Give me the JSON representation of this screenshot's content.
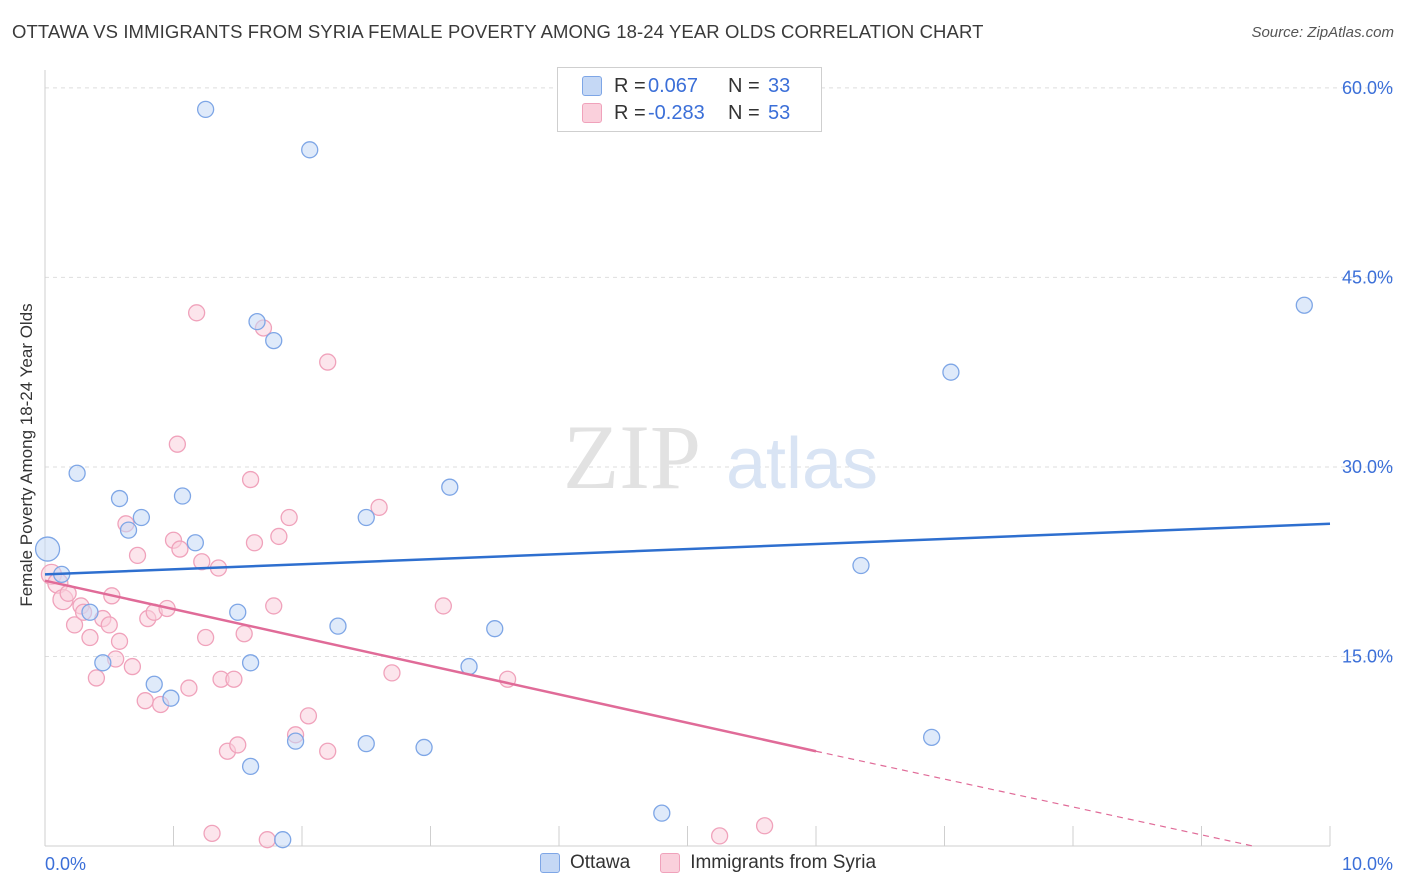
{
  "chart_data": {
    "type": "scatter",
    "title": "OTTAWA VS IMMIGRANTS FROM SYRIA FEMALE POVERTY AMONG 18-24 YEAR OLDS CORRELATION CHART",
    "source": "Source: ZipAtlas.com",
    "watermark": {
      "zip": "ZIP",
      "atlas": "atlas"
    },
    "xlabel": "",
    "ylabel": "Female Poverty Among 18-24 Year Olds",
    "xlim": [
      0,
      10
    ],
    "ylim": [
      0,
      63
    ],
    "x_tick_labels": [
      "0.0%",
      "10.0%"
    ],
    "y_tick_values": [
      15,
      30,
      45,
      60
    ],
    "y_tick_labels": [
      "15.0%",
      "30.0%",
      "45.0%",
      "60.0%"
    ],
    "legend": {
      "rows": [
        {
          "r_label": "R =",
          "r_value": "0.067",
          "n_label": "N =",
          "n_value": "33"
        },
        {
          "r_label": "R =",
          "r_value": "-0.283",
          "n_label": "N =",
          "n_value": "53"
        }
      ]
    },
    "series": [
      {
        "name": "Ottawa",
        "color": "#7ea6e6",
        "fill": "#c5d8f5",
        "line_color": "#2e6fcf",
        "trend": {
          "x0": 0,
          "y0": 21.5,
          "x1": 10,
          "y1": 25.5
        },
        "points": [
          [
            0.02,
            23.5,
            12
          ],
          [
            0.13,
            21.5,
            8
          ],
          [
            0.25,
            29.5,
            8
          ],
          [
            0.35,
            18.5,
            8
          ],
          [
            0.45,
            14.5,
            8
          ],
          [
            0.58,
            27.5,
            8
          ],
          [
            0.65,
            25.0,
            8
          ],
          [
            0.75,
            26.0,
            8
          ],
          [
            0.85,
            12.8,
            8
          ],
          [
            0.98,
            11.7,
            8
          ],
          [
            1.07,
            27.7,
            8
          ],
          [
            1.17,
            24.0,
            8
          ],
          [
            1.25,
            58.3,
            8
          ],
          [
            1.5,
            18.5,
            8
          ],
          [
            1.6,
            14.5,
            8
          ],
          [
            1.6,
            6.3,
            8
          ],
          [
            1.65,
            41.5,
            8
          ],
          [
            1.78,
            40.0,
            8
          ],
          [
            1.85,
            0.5,
            8
          ],
          [
            1.95,
            8.3,
            8
          ],
          [
            2.06,
            55.1,
            8
          ],
          [
            2.28,
            17.4,
            8
          ],
          [
            2.5,
            8.1,
            8
          ],
          [
            2.5,
            26.0,
            8
          ],
          [
            2.95,
            7.8,
            8
          ],
          [
            3.15,
            28.4,
            8
          ],
          [
            3.3,
            14.2,
            8
          ],
          [
            3.5,
            17.2,
            8
          ],
          [
            4.8,
            2.6,
            8
          ],
          [
            6.35,
            22.2,
            8
          ],
          [
            6.9,
            8.6,
            8
          ],
          [
            7.05,
            37.5,
            8
          ],
          [
            9.8,
            42.8,
            8
          ]
        ]
      },
      {
        "name": "Immigrants from Syria",
        "color": "#f0a2bb",
        "fill": "#fad0dc",
        "line_color": "#e06b98",
        "trend": {
          "x0": 0,
          "y0": 21.0,
          "x1": 6.0,
          "y1": 7.5
        },
        "trend_ext": {
          "x0": 6.0,
          "y0": 7.5,
          "x1": 9.4,
          "y1": 0
        },
        "points": [
          [
            0.05,
            21.5,
            10
          ],
          [
            0.1,
            20.8,
            10
          ],
          [
            0.14,
            19.5,
            10
          ],
          [
            0.18,
            20.0,
            8
          ],
          [
            0.23,
            17.5,
            8
          ],
          [
            0.28,
            19.0,
            8
          ],
          [
            0.3,
            18.5,
            8
          ],
          [
            0.35,
            16.5,
            8
          ],
          [
            0.4,
            13.3,
            8
          ],
          [
            0.45,
            18.0,
            8
          ],
          [
            0.5,
            17.5,
            8
          ],
          [
            0.52,
            19.8,
            8
          ],
          [
            0.55,
            14.8,
            8
          ],
          [
            0.58,
            16.2,
            8
          ],
          [
            0.63,
            25.5,
            8
          ],
          [
            0.68,
            14.2,
            8
          ],
          [
            0.72,
            23.0,
            8
          ],
          [
            0.78,
            11.5,
            8
          ],
          [
            0.8,
            18.0,
            8
          ],
          [
            0.85,
            18.5,
            8
          ],
          [
            0.9,
            11.2,
            8
          ],
          [
            0.95,
            18.8,
            8
          ],
          [
            1.0,
            24.2,
            8
          ],
          [
            1.03,
            31.8,
            8
          ],
          [
            1.05,
            23.5,
            8
          ],
          [
            1.12,
            12.5,
            8
          ],
          [
            1.18,
            42.2,
            8
          ],
          [
            1.22,
            22.5,
            8
          ],
          [
            1.25,
            16.5,
            8
          ],
          [
            1.3,
            1.0,
            8
          ],
          [
            1.35,
            22.0,
            8
          ],
          [
            1.37,
            13.2,
            8
          ],
          [
            1.42,
            7.5,
            8
          ],
          [
            1.47,
            13.2,
            8
          ],
          [
            1.5,
            8.0,
            8
          ],
          [
            1.55,
            16.8,
            8
          ],
          [
            1.6,
            29.0,
            8
          ],
          [
            1.63,
            24.0,
            8
          ],
          [
            1.7,
            41.0,
            8
          ],
          [
            1.73,
            0.5,
            8
          ],
          [
            1.78,
            19.0,
            8
          ],
          [
            1.82,
            24.5,
            8
          ],
          [
            1.9,
            26.0,
            8
          ],
          [
            1.95,
            8.8,
            8
          ],
          [
            2.05,
            10.3,
            8
          ],
          [
            2.2,
            38.3,
            8
          ],
          [
            2.2,
            7.5,
            8
          ],
          [
            2.6,
            26.8,
            8
          ],
          [
            2.7,
            13.7,
            8
          ],
          [
            3.1,
            19.0,
            8
          ],
          [
            3.6,
            13.2,
            8
          ],
          [
            5.25,
            0.8,
            8
          ],
          [
            5.6,
            1.6,
            8
          ]
        ]
      }
    ]
  }
}
